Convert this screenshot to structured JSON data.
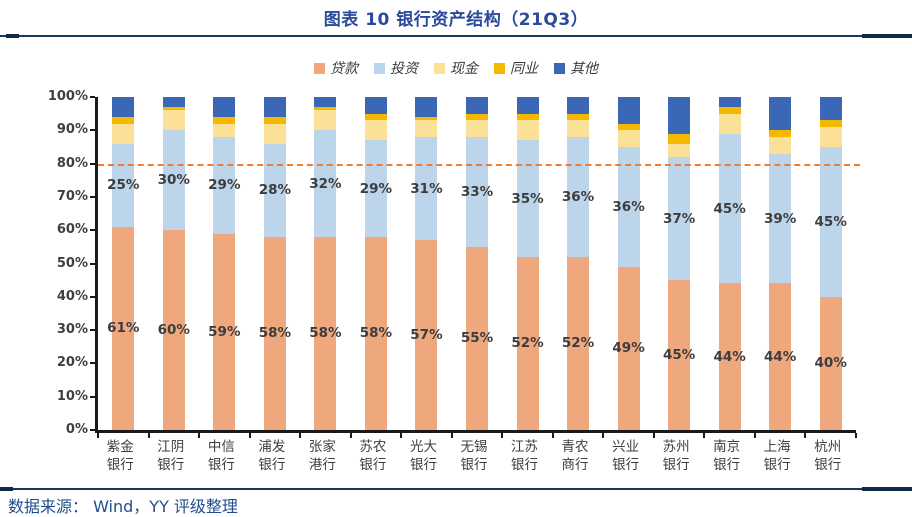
{
  "title": "图表 10 银行资产结构（21Q3）",
  "footer": {
    "source_text": "数据来源： Wind，YY 评级整理"
  },
  "colors": {
    "title_blue": "#2A4A9B",
    "rule_navy": "#17375E",
    "footer_blue": "#1F4E8F",
    "axis_black": "#1a1a1a",
    "reference_orange": "#ED7D31",
    "loans": "#EFA77D",
    "investment": "#BDD5EA",
    "cash": "#FBE198",
    "interbank": "#F5B800",
    "other": "#3A67B6"
  },
  "chart_data": {
    "type": "bar",
    "stacked": true,
    "title": "图表 10 银行资产结构（21Q3）",
    "categories": [
      "紫金银行",
      "江阴银行",
      "中信银行",
      "浦发银行",
      "张家港行",
      "苏农银行",
      "光大银行",
      "无锡银行",
      "江苏银行",
      "青农商行",
      "兴业银行",
      "苏州银行",
      "南京银行",
      "上海银行",
      "杭州银行"
    ],
    "series": [
      {
        "name": "贷款",
        "color": "#EFA77D",
        "labeled": true,
        "values": [
          61,
          60,
          59,
          58,
          58,
          58,
          57,
          55,
          52,
          52,
          49,
          45,
          44,
          44,
          40
        ]
      },
      {
        "name": "投资",
        "color": "#BDD5EA",
        "labeled": true,
        "values": [
          25,
          30,
          29,
          28,
          32,
          29,
          31,
          33,
          35,
          36,
          36,
          37,
          45,
          39,
          45
        ]
      },
      {
        "name": "现金",
        "color": "#FBE198",
        "labeled": false,
        "values": [
          6,
          6,
          4,
          6,
          6,
          6,
          5,
          5,
          6,
          5,
          5,
          4,
          6,
          5,
          6
        ]
      },
      {
        "name": "同业",
        "color": "#F5B800",
        "labeled": false,
        "values": [
          2,
          1,
          2,
          2,
          1,
          2,
          1,
          2,
          2,
          2,
          2,
          3,
          2,
          2,
          2
        ]
      },
      {
        "name": "其他",
        "color": "#3A67B6",
        "labeled": false,
        "values": [
          6,
          3,
          6,
          6,
          3,
          5,
          6,
          5,
          5,
          5,
          8,
          11,
          3,
          10,
          7
        ]
      }
    ],
    "ylim": [
      0,
      100
    ],
    "yticks": [
      "100%",
      "90%",
      "80%",
      "70%",
      "60%",
      "50%",
      "40%",
      "30%",
      "20%",
      "10%",
      "0%"
    ],
    "ylabel": "",
    "xlabel": "",
    "grid": false,
    "legend_position": "top",
    "reference_line": {
      "value": 80,
      "color": "#ED7D31",
      "style": "dashed"
    }
  }
}
